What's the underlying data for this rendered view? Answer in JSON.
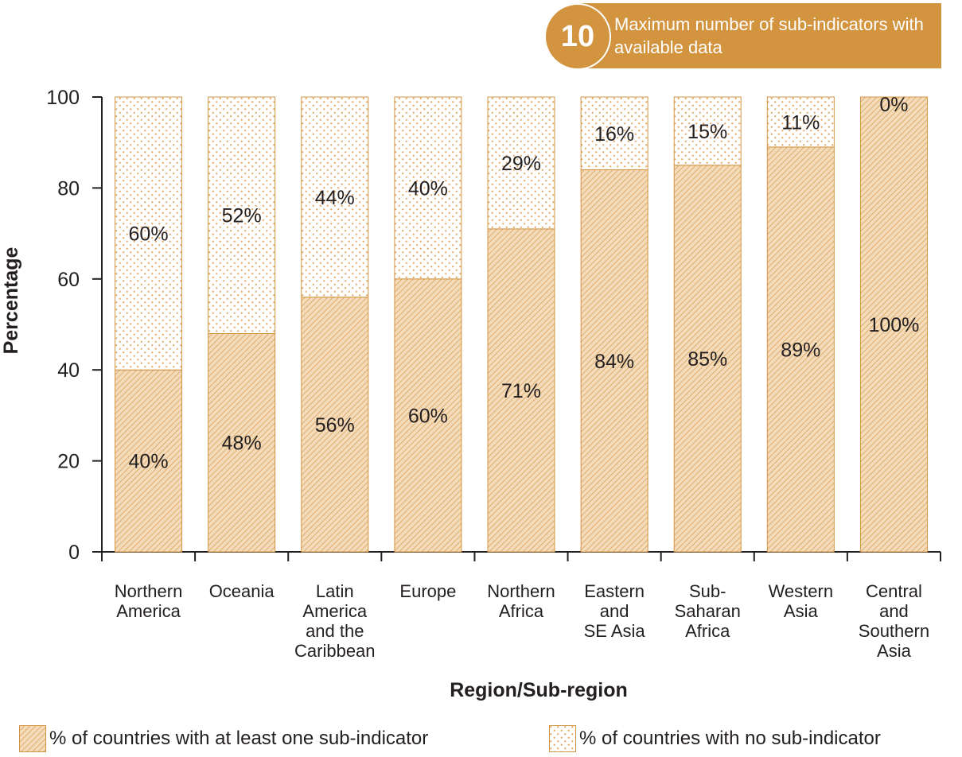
{
  "badge": {
    "number": "10",
    "text": "Maximum number of sub-indicators with available data",
    "color": "#d39440"
  },
  "colors": {
    "bar_fill": "#f1d7b3",
    "bar_stroke": "#d39440",
    "axis": "#231f20"
  },
  "legend": {
    "items": [
      {
        "label": "% of countries with at least one sub-indicator",
        "pattern": "hatch"
      },
      {
        "label": "% of countries with no sub-indicator",
        "pattern": "dots"
      }
    ]
  },
  "chart_data": {
    "type": "bar",
    "stacked": true,
    "ylabel": "Percentage",
    "xlabel": "Region/Sub-region",
    "ylim": [
      0,
      100
    ],
    "yticks": [
      0,
      20,
      40,
      60,
      80,
      100
    ],
    "categories": [
      [
        "Northern",
        "America"
      ],
      [
        "Oceania"
      ],
      [
        "Latin",
        "America",
        "and the",
        "Caribbean"
      ],
      [
        "Europe"
      ],
      [
        "Northern",
        "Africa"
      ],
      [
        "Eastern",
        "and",
        "SE Asia"
      ],
      [
        "Sub-",
        "Saharan",
        "Africa"
      ],
      [
        "Western",
        "Asia"
      ],
      [
        "Central",
        "and",
        "Southern",
        "Asia"
      ]
    ],
    "series": [
      {
        "name": "% of countries with at least one sub-indicator",
        "values": [
          40,
          48,
          56,
          60,
          71,
          84,
          85,
          89,
          100
        ],
        "labels": [
          "40%",
          "48%",
          "56%",
          "60%",
          "71%",
          "84%",
          "85%",
          "89%",
          "100%"
        ]
      },
      {
        "name": "% of countries with no sub-indicator",
        "values": [
          60,
          52,
          44,
          40,
          29,
          16,
          15,
          11,
          0
        ],
        "labels": [
          "60%",
          "52%",
          "44%",
          "40%",
          "29%",
          "16%",
          "15%",
          "11%",
          "0%"
        ]
      }
    ]
  }
}
